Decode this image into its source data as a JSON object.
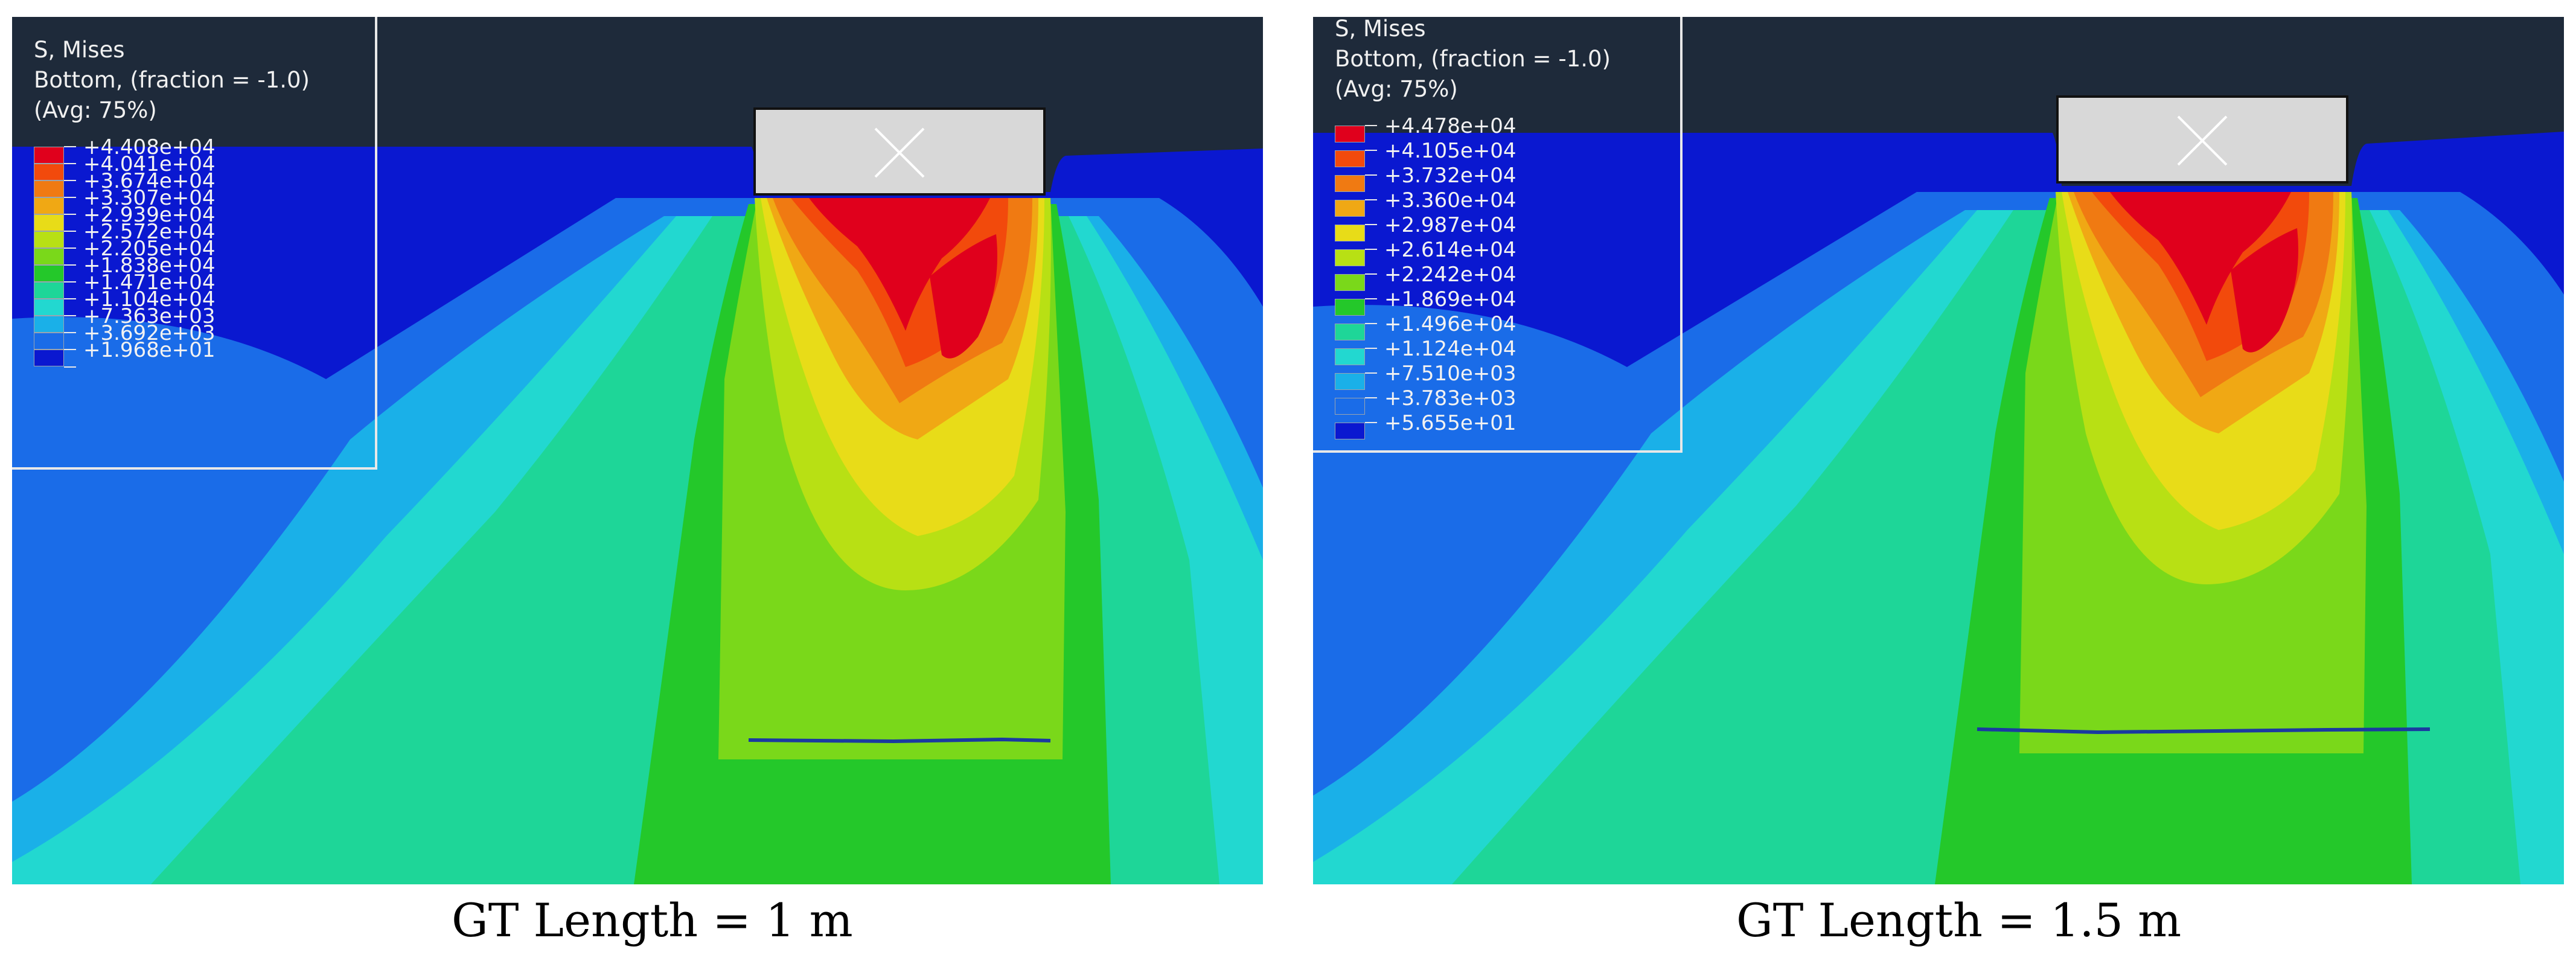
{
  "panels": [
    {
      "legend": {
        "title": "S, Mises",
        "subtitle": "Bottom, (fraction = -1.0)",
        "avg": "(Avg: 75%)",
        "values": [
          "+4.408e+04",
          "+4.041e+04",
          "+3.674e+04",
          "+3.307e+04",
          "+2.939e+04",
          "+2.572e+04",
          "+2.205e+04",
          "+1.838e+04",
          "+1.471e+04",
          "+1.104e+04",
          "+7.363e+03",
          "+3.692e+03",
          "+1.968e+01"
        ]
      },
      "caption": "GT Length = 1 m"
    },
    {
      "legend": {
        "title": "S, Mises",
        "subtitle": "Bottom, (fraction = -1.0)",
        "avg": "(Avg: 75%)",
        "values": [
          "+4.478e+04",
          "+4.105e+04",
          "+3.732e+04",
          "+3.360e+04",
          "+2.987e+04",
          "+2.614e+04",
          "+2.242e+04",
          "+1.869e+04",
          "+1.496e+04",
          "+1.124e+04",
          "+7.510e+03",
          "+3.783e+03",
          "+5.655e+01"
        ]
      },
      "caption": "GT Length = 1.5 m"
    }
  ],
  "contour_colors": [
    "#e0001c",
    "#f24a0c",
    "#f07a12",
    "#f0a814",
    "#e8dc18",
    "#b8e014",
    "#7ad81a",
    "#24c82a",
    "#1ed698",
    "#22d8d0",
    "#1ab0e8",
    "#1a6ce8",
    "#0a18d0"
  ],
  "background_color": "#1e2a3a",
  "footing_color": "#d8d8d8",
  "geotextile_color": "#1a3aa0"
}
